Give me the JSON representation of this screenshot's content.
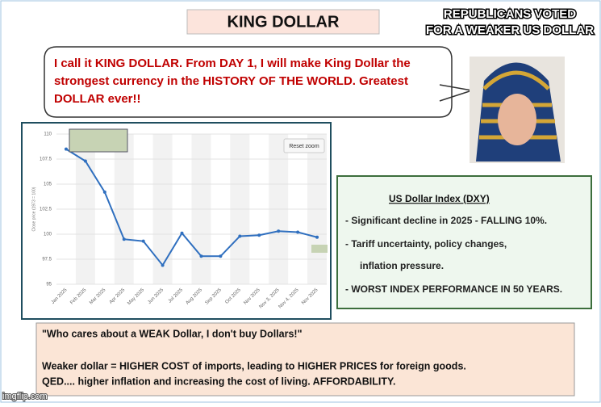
{
  "header": {
    "title": "KING DOLLAR",
    "caption": [
      "REPUBLICANS VOTED",
      "FOR A WEAKER US DOLLAR"
    ]
  },
  "speech": [
    "I call it KING DOLLAR.  From DAY 1, I will make King Dollar the",
    "strongest currency in the HISTORY OF THE WORLD. Greatest",
    "DOLLAR ever!!"
  ],
  "chart_data": {
    "type": "line",
    "y_label": "Close price (1973 = 100)",
    "button": "Reset zoom",
    "categories": [
      "Jan 2025",
      "Feb 2025",
      "Mar 2025",
      "Apr 2025",
      "May 2025",
      "Jun 2025",
      "Jul 2025",
      "Aug 2025",
      "Sep 2025",
      "Oct 2025",
      "Nov 2025",
      "Nov 3, 2025",
      "Nov 4, 2025",
      "Nov 2025"
    ],
    "series": [
      {
        "name": "DXY",
        "color": "#2f6fbf",
        "values": [
          108.5,
          107.3,
          104.2,
          99.5,
          99.3,
          96.9,
          100.1,
          97.8,
          97.8,
          99.8,
          99.9,
          100.3,
          100.2,
          99.7
        ]
      }
    ],
    "ylim": [
      95,
      110
    ],
    "yticks": [
      95,
      97.5,
      100,
      102.5,
      105,
      107.5,
      110
    ],
    "grid": true
  },
  "info": {
    "title": "US Dollar Index (DXY)",
    "lines": [
      "- Significant decline in 2025 - FALLING 10%.",
      "- Tariff uncertainty, policy changes,",
      "inflation pressure.",
      "- WORST INDEX PERFORMANCE IN 50 YEARS."
    ]
  },
  "footer": {
    "quote": "\"Who cares about a WEAK Dollar, I don't buy Dollars!\"",
    "lines": [
      "Weaker dollar = HIGHER COST of imports, leading to HIGHER PRICES for foreign goods.",
      "QED.... higher inflation and increasing the cost of living. AFFORDABILITY."
    ]
  },
  "watermark": "imgflip.com"
}
